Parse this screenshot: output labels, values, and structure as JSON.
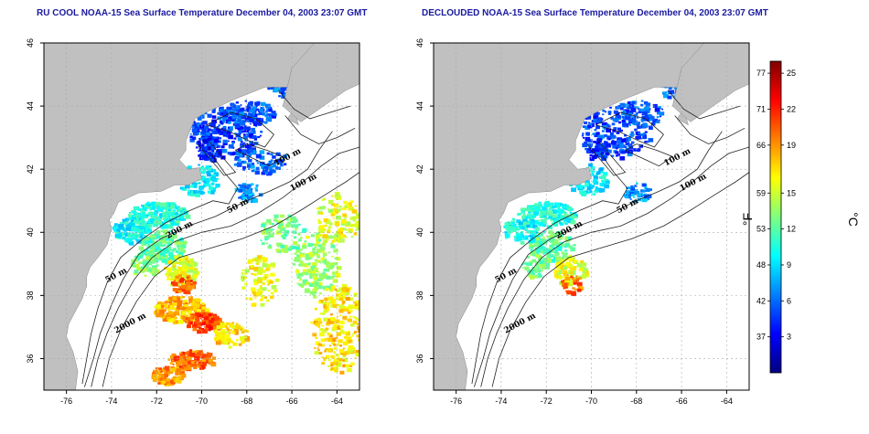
{
  "panels": [
    {
      "id": "left",
      "title": "RU COOL NOAA-15 Sea Surface Temperature December 04, 2003 23:07 GMT",
      "clouded": true
    },
    {
      "id": "right",
      "title": "DECLOUDED NOAA-15 Sea Surface Temperature December 04, 2003 23:07 GMT",
      "clouded": false
    }
  ],
  "axes": {
    "lon_range": [
      -77,
      -63
    ],
    "lat_range": [
      35,
      46
    ],
    "lon_ticks": [
      -76,
      -74,
      -72,
      -70,
      -68,
      -66,
      -64
    ],
    "lon_tick_labels": [
      "-76",
      "-74",
      "-72",
      "-70",
      "-68",
      "-66",
      "-64"
    ],
    "lat_ticks": [
      36,
      38,
      40,
      42,
      44,
      46
    ],
    "lat_tick_labels": [
      "36",
      "38",
      "40",
      "42",
      "44",
      "46"
    ],
    "grid": true
  },
  "contour_labels": [
    {
      "text": "100 m",
      "lon": -66.7,
      "lat": 42.1
    },
    {
      "text": "100 m",
      "lon": -66.0,
      "lat": 41.3
    },
    {
      "text": "50 m",
      "lon": -68.8,
      "lat": 40.6
    },
    {
      "text": "200 m",
      "lon": -71.5,
      "lat": 39.8
    },
    {
      "text": "50 m",
      "lon": -74.2,
      "lat": 38.4
    },
    {
      "text": "2000 m",
      "lon": -73.8,
      "lat": 36.8
    }
  ],
  "colorbar": {
    "celsius_ticks": [
      3,
      6,
      9,
      12,
      15,
      19,
      22,
      25
    ],
    "celsius_labels": [
      "3",
      "6",
      "9",
      "12",
      "15",
      "19",
      "22",
      "25"
    ],
    "fahrenheit_labels": [
      "37",
      "42",
      "48",
      "53",
      "59",
      "66",
      "71",
      "77"
    ],
    "range_c": [
      0,
      26
    ],
    "unit_f": "°F",
    "unit_c": "°C",
    "colors": [
      "#00007f",
      "#0000ff",
      "#007fff",
      "#00ffff",
      "#7fff7f",
      "#ffff00",
      "#ff7f00",
      "#ff0000",
      "#7f0000"
    ]
  },
  "colors": {
    "land": "#c0c0c0",
    "water": "#ffffff",
    "title": "#1a1aa0"
  }
}
